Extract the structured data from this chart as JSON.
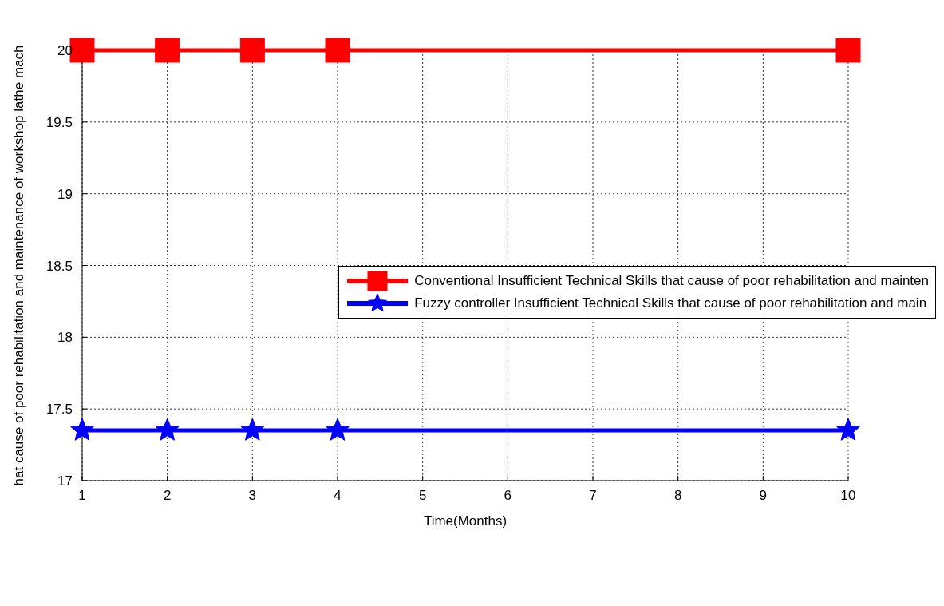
{
  "chart_data": {
    "type": "line",
    "xlabel": "Time(Months)",
    "ylabel": "hat cause of poor rehabilitation and maintenance of workshop lathe mach",
    "x": [
      1,
      2,
      3,
      4,
      10
    ],
    "series": [
      {
        "name": "Conventional Insufficient Technical Skills that cause of poor rehabilitation and mainten",
        "color": "#ff0000",
        "marker": "square",
        "values": [
          20,
          20,
          20,
          20,
          20
        ]
      },
      {
        "name": "Fuzzy controller Insufficient Technical Skills that cause of poor rehabilitation and main",
        "color": "#0000ff",
        "marker": "star",
        "values": [
          17.35,
          17.35,
          17.35,
          17.35,
          17.35
        ]
      }
    ],
    "xlim": [
      1,
      10
    ],
    "xticks": [
      1,
      2,
      3,
      4,
      5,
      6,
      7,
      8,
      9,
      10
    ],
    "ylim": [
      17,
      20
    ],
    "yticks": [
      17,
      17.5,
      18,
      18.5,
      19,
      19.5,
      20
    ],
    "grid": true,
    "legend": "right",
    "line_style": "solid"
  }
}
